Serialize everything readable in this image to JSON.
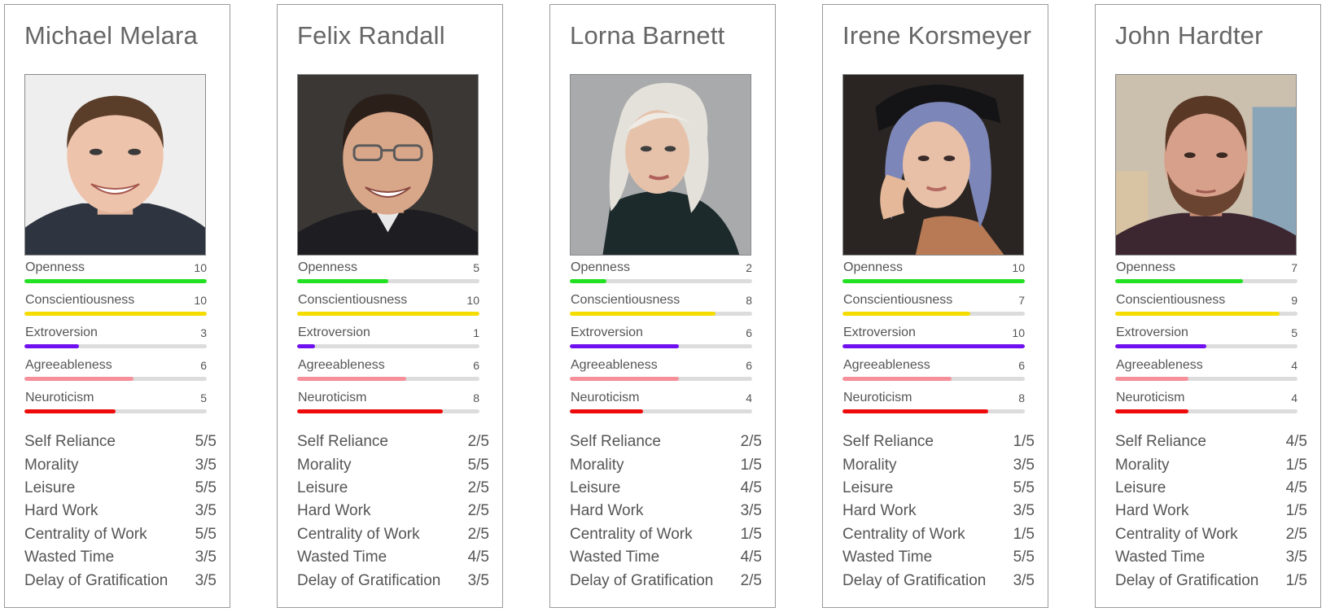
{
  "trait_colors": {
    "openness": "#22e022",
    "conscientiousness": "#f5dc00",
    "extroversion": "#7010f0",
    "agreeableness": "#f5909a",
    "neuroticism": "#ee0a0a",
    "track": "#dcdcdc"
  },
  "trait_max": 10,
  "profiles": [
    {
      "name": "Michael Melara",
      "traits": [
        {
          "label": "Openness",
          "score": "10"
        },
        {
          "label": "Conscientiousness",
          "score": "10"
        },
        {
          "label": "Extroversion",
          "score": "3"
        },
        {
          "label": "Agreeableness",
          "score": "6"
        },
        {
          "label": "Neuroticism",
          "score": "5"
        }
      ],
      "values": [
        {
          "label": "Self Reliance",
          "score": "5/5"
        },
        {
          "label": "Morality",
          "score": "3/5"
        },
        {
          "label": "Leisure",
          "score": "5/5"
        },
        {
          "label": "Hard Work",
          "score": "3/5"
        },
        {
          "label": "Centrality of Work",
          "score": "5/5"
        },
        {
          "label": "Wasted Time",
          "score": "3/5"
        },
        {
          "label": "Delay of Gratification",
          "score": "3/5"
        }
      ]
    },
    {
      "name": "Felix Randall",
      "traits": [
        {
          "label": "Openness",
          "score": "5"
        },
        {
          "label": "Conscientiousness",
          "score": "10"
        },
        {
          "label": "Extroversion",
          "score": "1"
        },
        {
          "label": "Agreeableness",
          "score": "6"
        },
        {
          "label": "Neuroticism",
          "score": "8"
        }
      ],
      "values": [
        {
          "label": "Self Reliance",
          "score": "2/5"
        },
        {
          "label": "Morality",
          "score": "5/5"
        },
        {
          "label": "Leisure",
          "score": "2/5"
        },
        {
          "label": "Hard Work",
          "score": "2/5"
        },
        {
          "label": "Centrality of Work",
          "score": "2/5"
        },
        {
          "label": "Wasted Time",
          "score": "4/5"
        },
        {
          "label": "Delay of Gratification",
          "score": "3/5"
        }
      ]
    },
    {
      "name": "Lorna Barnett",
      "traits": [
        {
          "label": "Openness",
          "score": "2"
        },
        {
          "label": "Conscientiousness",
          "score": "8"
        },
        {
          "label": "Extroversion",
          "score": "6"
        },
        {
          "label": "Agreeableness",
          "score": "6"
        },
        {
          "label": "Neuroticism",
          "score": "4"
        }
      ],
      "values": [
        {
          "label": "Self Reliance",
          "score": "2/5"
        },
        {
          "label": "Morality",
          "score": "1/5"
        },
        {
          "label": "Leisure",
          "score": "4/5"
        },
        {
          "label": "Hard Work",
          "score": "3/5"
        },
        {
          "label": "Centrality of Work",
          "score": "1/5"
        },
        {
          "label": "Wasted Time",
          "score": "4/5"
        },
        {
          "label": "Delay of Gratification",
          "score": "2/5"
        }
      ]
    },
    {
      "name": "Irene Korsmeyer",
      "traits": [
        {
          "label": "Openness",
          "score": "10"
        },
        {
          "label": "Conscientiousness",
          "score": "7"
        },
        {
          "label": "Extroversion",
          "score": "10"
        },
        {
          "label": "Agreeableness",
          "score": "6"
        },
        {
          "label": "Neuroticism",
          "score": "8"
        }
      ],
      "values": [
        {
          "label": "Self Reliance",
          "score": "1/5"
        },
        {
          "label": "Morality",
          "score": "3/5"
        },
        {
          "label": "Leisure",
          "score": "5/5"
        },
        {
          "label": "Hard Work",
          "score": "3/5"
        },
        {
          "label": "Centrality of Work",
          "score": "1/5"
        },
        {
          "label": "Wasted Time",
          "score": "5/5"
        },
        {
          "label": "Delay of Gratification",
          "score": "3/5"
        }
      ]
    },
    {
      "name": "John Hardter",
      "traits": [
        {
          "label": "Openness",
          "score": "7"
        },
        {
          "label": "Conscientiousness",
          "score": "9"
        },
        {
          "label": "Extroversion",
          "score": "5"
        },
        {
          "label": "Agreeableness",
          "score": "4"
        },
        {
          "label": "Neuroticism",
          "score": "4"
        }
      ],
      "values": [
        {
          "label": "Self Reliance",
          "score": "4/5"
        },
        {
          "label": "Morality",
          "score": "1/5"
        },
        {
          "label": "Leisure",
          "score": "4/5"
        },
        {
          "label": "Hard Work",
          "score": "1/5"
        },
        {
          "label": "Centrality of Work",
          "score": "2/5"
        },
        {
          "label": "Wasted Time",
          "score": "3/5"
        },
        {
          "label": "Delay of Gratification",
          "score": "1/5"
        }
      ]
    }
  ]
}
